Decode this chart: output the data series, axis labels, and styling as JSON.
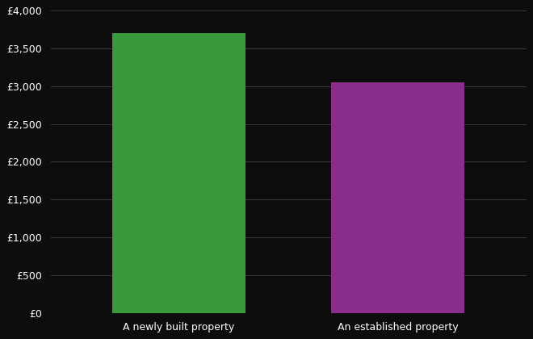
{
  "categories": [
    "A newly built property",
    "An established property"
  ],
  "values": [
    3704,
    3047
  ],
  "bar_colors": [
    "#3a9a3a",
    "#8b2d8b"
  ],
  "background_color": "#0d0d0d",
  "text_color": "#ffffff",
  "grid_color": "#3a3a3a",
  "ylim": [
    0,
    4000
  ],
  "yticks": [
    0,
    500,
    1000,
    1500,
    2000,
    2500,
    3000,
    3500,
    4000
  ],
  "bar_width": 0.28,
  "x_positions": [
    0.27,
    0.73
  ]
}
